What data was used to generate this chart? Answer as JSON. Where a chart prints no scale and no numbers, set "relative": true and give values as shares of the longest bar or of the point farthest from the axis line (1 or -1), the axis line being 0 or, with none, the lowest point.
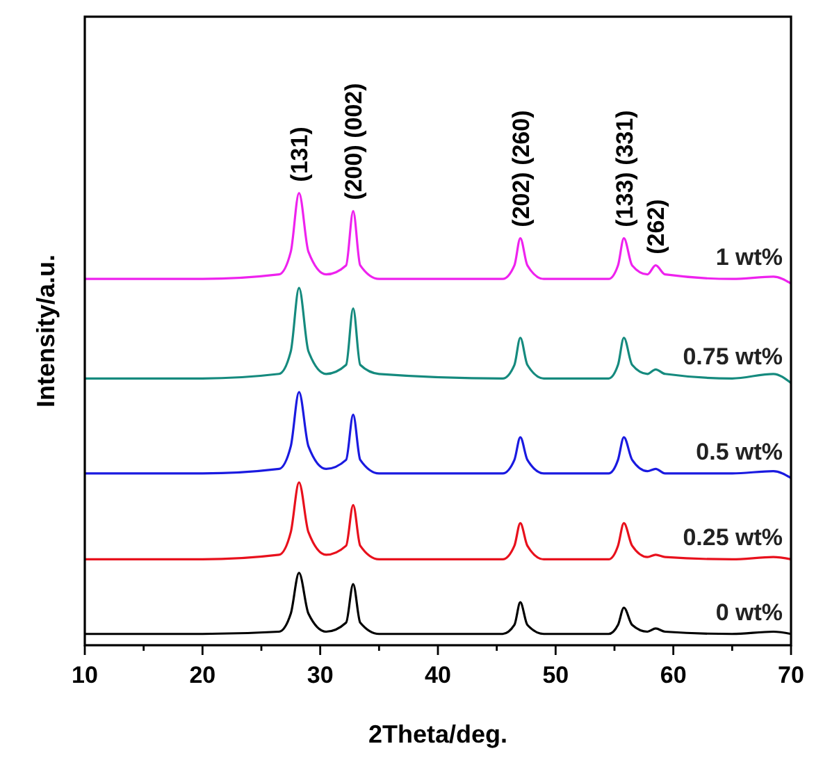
{
  "chart_data": {
    "type": "line",
    "relative": true,
    "xlabel": "2Theta/deg.",
    "ylabel": "Intensity/a.u.",
    "xlim": [
      10,
      70
    ],
    "xticks": [
      10,
      {
        "value": 15,
        "label": null
      },
      20,
      {
        "value": 25,
        "label": null
      },
      30,
      {
        "value": 35,
        "label": null
      },
      40,
      {
        "value": 45,
        "label": null
      },
      50,
      {
        "value": 55,
        "label": null
      },
      60,
      {
        "value": 65,
        "label": null
      },
      70
    ],
    "x": [
      10,
      20,
      26.5,
      27.5,
      28.2,
      29,
      30.5,
      32.2,
      32.8,
      33.4,
      35,
      45.5,
      46.5,
      47,
      47.6,
      49,
      54.5,
      55.3,
      55.8,
      56.5,
      57.8,
      58.5,
      59.3,
      65,
      68.5,
      70
    ],
    "series": [
      {
        "name": "0 wt%",
        "color": "#000000",
        "values": [
          0.025,
          0.025,
          0.03,
          0.07,
          0.16,
          0.07,
          0.03,
          0.05,
          0.135,
          0.05,
          0.025,
          0.025,
          0.045,
          0.095,
          0.045,
          0.025,
          0.025,
          0.045,
          0.083,
          0.045,
          0.03,
          0.037,
          0.03,
          0.025,
          0.03,
          0.025
        ]
      },
      {
        "name": "0.25 wt%",
        "color": "#e8101c",
        "values": [
          0.19,
          0.19,
          0.2,
          0.25,
          0.36,
          0.25,
          0.2,
          0.22,
          0.31,
          0.22,
          0.19,
          0.19,
          0.22,
          0.27,
          0.22,
          0.19,
          0.19,
          0.22,
          0.27,
          0.22,
          0.195,
          0.2,
          0.195,
          0.19,
          0.195,
          0.19
        ]
      },
      {
        "name": "0.5 wt%",
        "color": "#1a1ae0",
        "values": [
          0.38,
          0.38,
          0.39,
          0.44,
          0.56,
          0.44,
          0.39,
          0.41,
          0.51,
          0.41,
          0.38,
          0.38,
          0.41,
          0.46,
          0.41,
          0.38,
          0.38,
          0.41,
          0.46,
          0.41,
          0.385,
          0.39,
          0.38,
          0.38,
          0.385,
          0.37
        ]
      },
      {
        "name": "0.75 wt%",
        "color": "#158a7e",
        "values": [
          0.59,
          0.59,
          0.6,
          0.65,
          0.79,
          0.65,
          0.6,
          0.62,
          0.745,
          0.62,
          0.6,
          0.59,
          0.62,
          0.68,
          0.62,
          0.59,
          0.59,
          0.62,
          0.68,
          0.62,
          0.6,
          0.61,
          0.6,
          0.59,
          0.6,
          0.58
        ]
      },
      {
        "name": "1 wt%",
        "color": "#ee22ee",
        "values": [
          0.81,
          0.81,
          0.82,
          0.87,
          1,
          0.87,
          0.82,
          0.84,
          0.96,
          0.84,
          0.81,
          0.81,
          0.84,
          0.9,
          0.84,
          0.81,
          0.81,
          0.84,
          0.9,
          0.84,
          0.82,
          0.84,
          0.82,
          0.81,
          0.815,
          0.8
        ]
      }
    ],
    "annotations": [
      {
        "text": "(131)",
        "x": 28.2,
        "y": 1
      },
      {
        "text": "(200) (002)",
        "x": 32.8,
        "y": 0.96
      },
      {
        "text": "(202) (260)",
        "x": 47,
        "y": 0.9
      },
      {
        "text": "(133) (331)",
        "x": 55.8,
        "y": 0.9
      },
      {
        "text": "(262)",
        "x": 58.5,
        "y": 0.84
      }
    ],
    "marker": "none",
    "line_style": "solid",
    "grid": false
  }
}
